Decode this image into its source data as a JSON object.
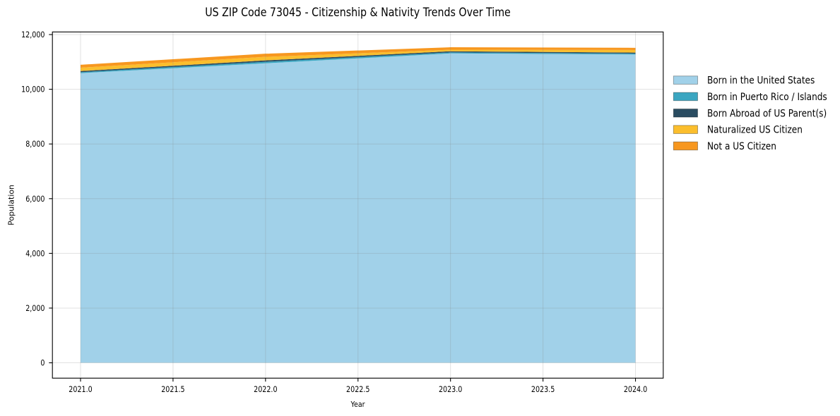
{
  "figure": {
    "background": "#ffffff"
  },
  "chart_data": {
    "type": "area",
    "stacked": true,
    "title": "US ZIP Code 73045 - Citizenship & Nativity Trends Over Time",
    "xlabel": "Year",
    "ylabel": "Population",
    "x": [
      2021,
      2022,
      2023,
      2024
    ],
    "series": [
      {
        "name": "Born in the United States",
        "color": "#A1D1E9",
        "values": [
          10590,
          10950,
          11310,
          11270
        ]
      },
      {
        "name": "Born in Puerto Rico / Islands",
        "color": "#3BA6C1",
        "values": [
          35,
          55,
          40,
          35
        ]
      },
      {
        "name": "Born Abroad of US Parent(s)",
        "color": "#2A4C61",
        "values": [
          40,
          50,
          40,
          35
        ]
      },
      {
        "name": "Naturalized US Citizen",
        "color": "#FBBE2D",
        "values": [
          125,
          130,
          55,
          95
        ]
      },
      {
        "name": "Not a US Citizen",
        "color": "#F7971F",
        "values": [
          105,
          115,
          90,
          80
        ]
      }
    ],
    "totals": [
      10895,
      11300,
      11535,
      11515
    ],
    "xlim": [
      2020.848,
      2024.15
    ],
    "ylim": [
      -561,
      12096
    ],
    "x_ticks": [
      2021.0,
      2021.5,
      2022.0,
      2022.5,
      2023.0,
      2023.5,
      2024.0
    ],
    "x_tick_labels": [
      "2021.0",
      "2021.5",
      "2022.0",
      "2022.5",
      "2023.0",
      "2023.5",
      "2024.0"
    ],
    "y_ticks": [
      0,
      2000,
      4000,
      6000,
      8000,
      10000,
      12000
    ],
    "y_tick_labels": [
      "0",
      "2,000",
      "4,000",
      "6,000",
      "8,000",
      "10,000",
      "12,000"
    ],
    "grid": true,
    "legend_position": "right",
    "legend": [
      {
        "label": "Born in the United States",
        "color": "#A1D1E9"
      },
      {
        "label": "Born in Puerto Rico / Islands",
        "color": "#3BA6C1"
      },
      {
        "label": "Born Abroad of US Parent(s)",
        "color": "#2A4C61"
      },
      {
        "label": "Naturalized US Citizen",
        "color": "#FBBE2D"
      },
      {
        "label": "Not a US Citizen",
        "color": "#F7971F"
      }
    ],
    "colors": {
      "grid": "#808080",
      "spine": "#000000",
      "text": "#000000"
    }
  }
}
